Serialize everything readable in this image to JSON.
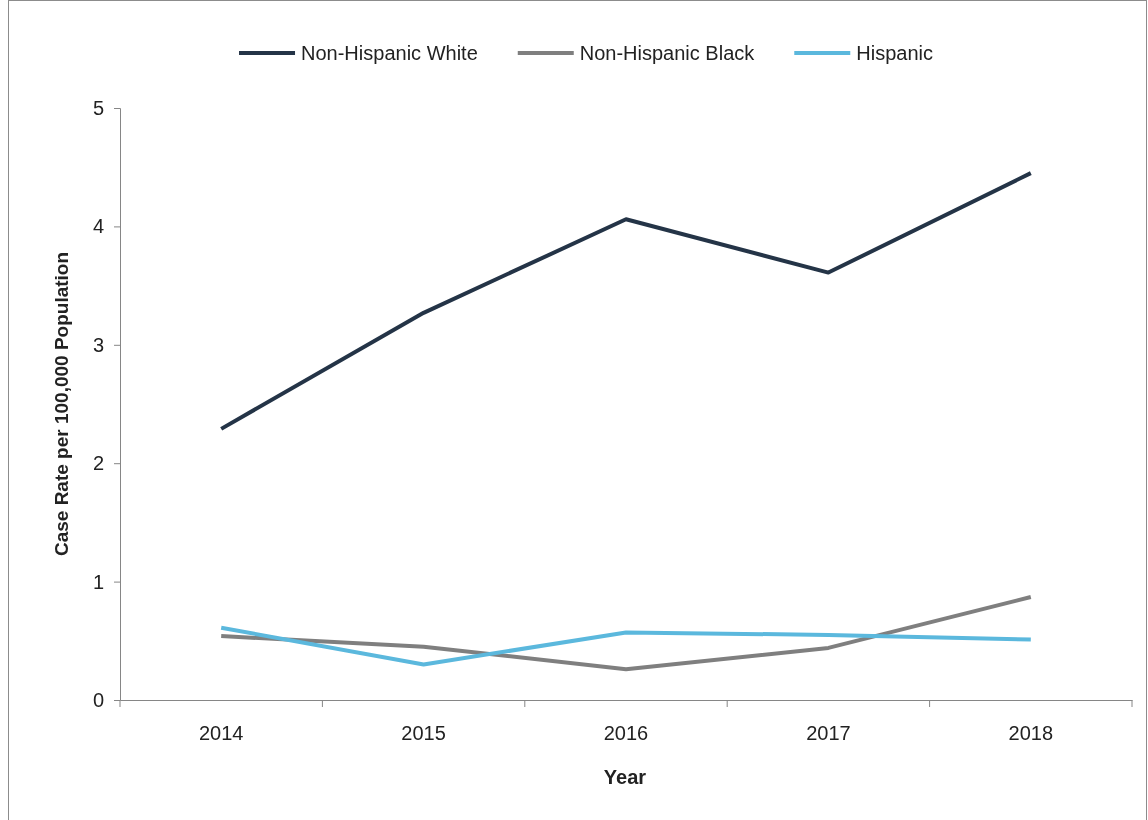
{
  "chart_data": {
    "type": "line",
    "xlabel": "Year",
    "ylabel": "Case Rate per 100,000 Population",
    "categories": [
      "2014",
      "2015",
      "2016",
      "2017",
      "2018"
    ],
    "series": [
      {
        "name": "Non-Hispanic White",
        "color": "#243447",
        "values": [
          2.29,
          3.27,
          4.06,
          3.61,
          4.45
        ]
      },
      {
        "name": "Non-Hispanic Black",
        "color": "#7f7f7f",
        "values": [
          0.54,
          0.45,
          0.26,
          0.44,
          0.87
        ]
      },
      {
        "name": "Hispanic",
        "color": "#5bb8dd",
        "values": [
          0.61,
          0.3,
          0.57,
          0.55,
          0.51
        ]
      }
    ],
    "ylim": [
      0,
      5
    ],
    "yticks": [
      0,
      1,
      2,
      3,
      4,
      5
    ],
    "grid": false,
    "legend": "top",
    "marker": "none",
    "line_style": "solid"
  }
}
